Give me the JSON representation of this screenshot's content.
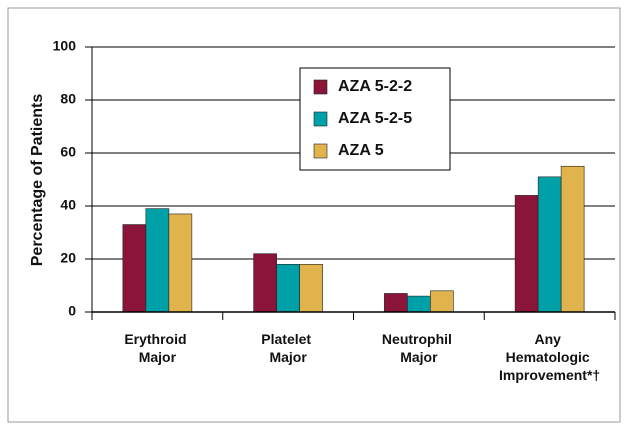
{
  "chart_data": {
    "type": "bar",
    "y_label": "Percentage of Patients",
    "categories": [
      "Erythroid Major",
      "Platelet Major",
      "Neutrophil Major",
      "Any Hematologic Improvement*†"
    ],
    "series": [
      {
        "name": "AZA 5-2-2",
        "color": "#8b1538",
        "values": [
          33,
          22,
          7,
          44
        ]
      },
      {
        "name": "AZA 5-2-5",
        "color": "#00a0a8",
        "values": [
          39,
          18,
          6,
          51
        ]
      },
      {
        "name": "AZA 5",
        "color": "#e0b34d",
        "values": [
          37,
          18,
          8,
          55
        ]
      }
    ],
    "ylim": [
      0,
      100
    ],
    "yticks": [
      0,
      20,
      40,
      60,
      80,
      100
    ],
    "grid": true,
    "legend": "top"
  }
}
